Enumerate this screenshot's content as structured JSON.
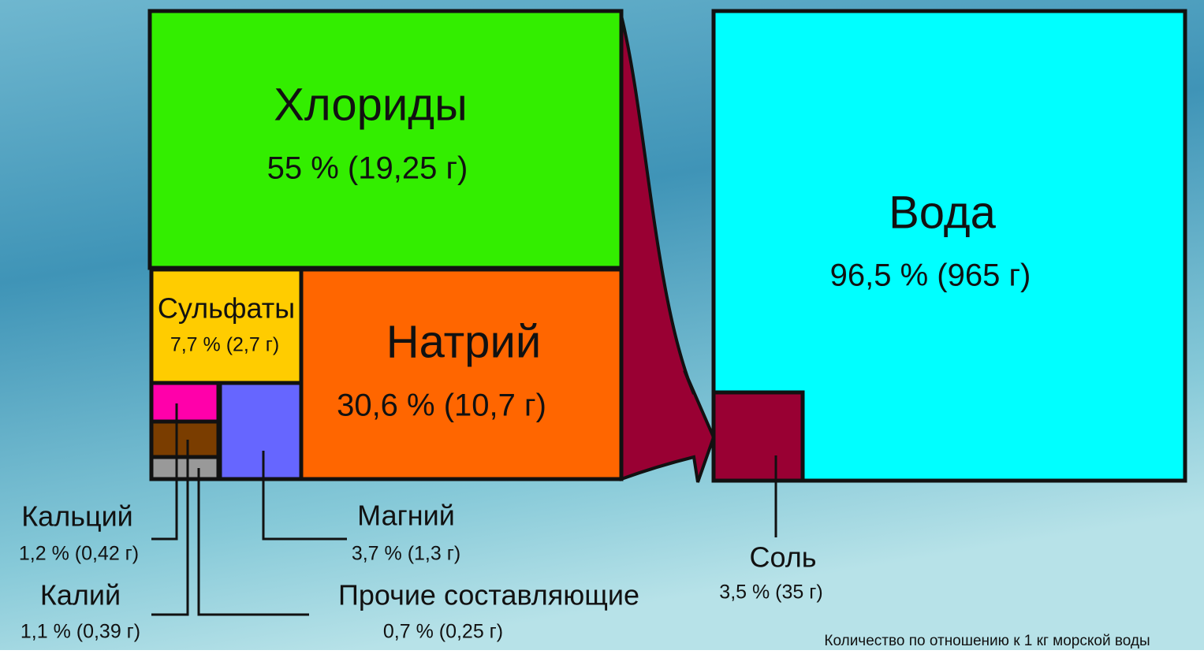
{
  "blocks": [
    {
      "name": "Хлориды",
      "value": "55 % (19,25 г)"
    },
    {
      "name": "Сульфаты",
      "value": "7,7 % (2,7 г)"
    },
    {
      "name": "Натрий",
      "value": "30,6 % (10,7 г)"
    },
    {
      "name": "Кальций",
      "value": "1,2 % (0,42 г)"
    },
    {
      "name": "Калий",
      "value": "1,1 % (0,39 г)"
    },
    {
      "name": "Прочие составляющие",
      "value": "0,7 % (0,25 г)"
    },
    {
      "name": "Магний",
      "value": "3,7 % (1,3 г)"
    },
    {
      "name": "Вода",
      "value": "96,5 % (965 г)"
    },
    {
      "name": "Соль",
      "value": "3,5 % (35 г)"
    }
  ],
  "note": "Количество по отношению к 1 кг морской воды"
}
